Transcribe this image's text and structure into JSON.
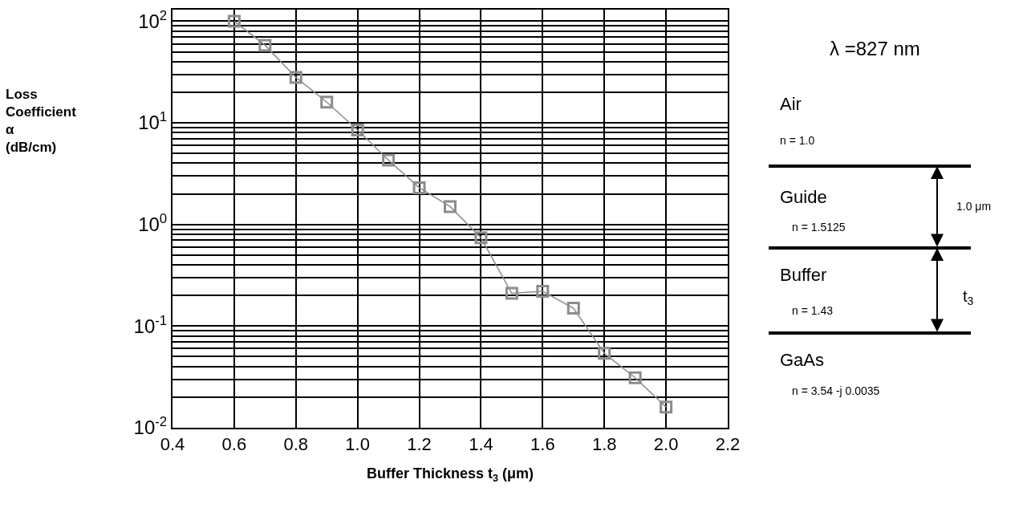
{
  "chart_data": {
    "type": "line",
    "xlabel": "Buffer Thickness t$_{3}$ (μm)",
    "ylabel": "Loss Coefficient α (dB/cm)",
    "x": [
      0.6,
      0.7,
      0.8,
      0.9,
      1.0,
      1.1,
      1.2,
      1.3,
      1.4,
      1.5,
      1.6,
      1.7,
      1.8,
      1.9,
      2.0
    ],
    "series": [
      {
        "color": "#8c8c8c",
        "values": [
          100,
          58,
          28,
          16,
          8.5,
          4.3,
          2.3,
          1.5,
          0.74,
          0.21,
          0.22,
          0.15,
          0.054,
          0.031,
          0.016
        ]
      }
    ],
    "log": "y",
    "marker": "square",
    "line_style": "solid",
    "grid": true,
    "xlim": [
      0.4,
      2.2
    ],
    "xticks": [
      0.4,
      0.6,
      0.8,
      {
        "value": 1.0,
        "label": "1.0"
      },
      1.2,
      1.4,
      1.6,
      1.8,
      {
        "value": 2.0,
        "label": "2.0"
      },
      2.2
    ],
    "ylim": [
      0.01,
      130
    ],
    "yticks": [
      {
        "value": 0.01,
        "label": "10$^{-2}$"
      },
      {
        "value": 0.1,
        "label": "10$^{-1}$"
      },
      {
        "value": 1,
        "label": "10$^{0}$"
      },
      {
        "value": 10,
        "label": "10$^{1}$"
      },
      {
        "value": 100,
        "label": "10$^{2}$"
      }
    ],
    "annotations": [
      "λ =827 nm",
      "Air",
      "n = 1.0",
      "Guide",
      "n = 1.5125",
      "Buffer",
      "n = 1.43",
      "GaAs",
      "n = 3.54 -j 0.0035",
      "1.0 μm",
      "t$_{3}$"
    ]
  }
}
